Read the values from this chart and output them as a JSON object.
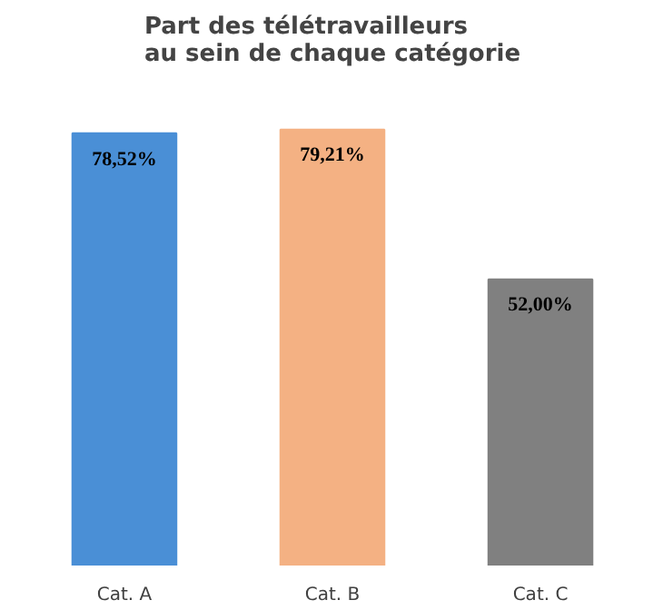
{
  "chart_data": {
    "type": "bar",
    "title": "Part des télétravailleurs\nau sein de chaque catégorie",
    "categories": [
      "Cat. A",
      "Cat. B",
      "Cat. C"
    ],
    "values": [
      78.52,
      79.21,
      52.0
    ],
    "colors": [
      "#4a8fd6",
      "#f4b183",
      "#808080"
    ],
    "value_labels": [
      "78,52%",
      "79,21%",
      "52,00%"
    ]
  }
}
